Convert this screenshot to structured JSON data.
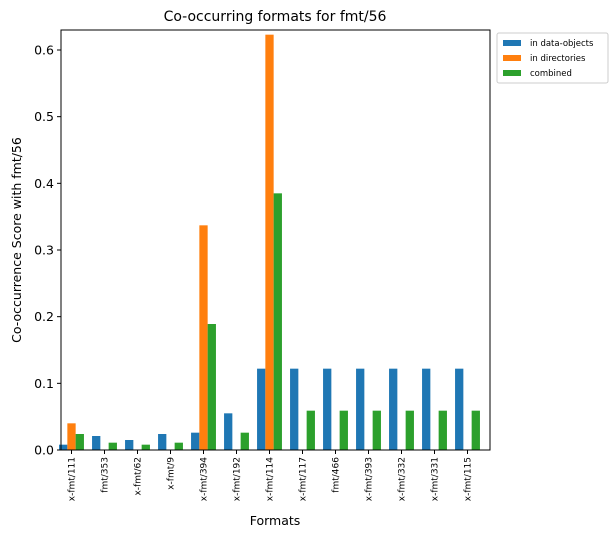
{
  "chart_data": {
    "type": "bar",
    "title": "Co-occurring formats for fmt/56",
    "xlabel": "Formats",
    "ylabel": "Co-occurrence Score with fmt/56",
    "ylim": [
      0,
      0.63
    ],
    "yticks": [
      "0.0",
      "0.1",
      "0.2",
      "0.3",
      "0.4",
      "0.5",
      "0.6"
    ],
    "grid": false,
    "legend_position": "outside-top-right",
    "categories": [
      "x-fmt/111",
      "fmt/353",
      "x-fmt/62",
      "x-fmt/9",
      "x-fmt/394",
      "x-fmt/192",
      "x-fmt/114",
      "x-fmt/117",
      "fmt/466",
      "x-fmt/393",
      "x-fmt/332",
      "x-fmt/331",
      "x-fmt/115"
    ],
    "series": [
      {
        "name": "in data-objects",
        "color": "#1f77b4",
        "values": [
          0.008,
          0.021,
          0.015,
          0.024,
          0.026,
          0.055,
          0.122,
          0.122,
          0.122,
          0.122,
          0.122,
          0.122,
          0.122
        ]
      },
      {
        "name": "in directories",
        "color": "#ff7f0e",
        "values": [
          0.04,
          0,
          0,
          0,
          0.337,
          0,
          0.623,
          0,
          0,
          0,
          0,
          0,
          0
        ]
      },
      {
        "name": "combined",
        "color": "#2ca02c",
        "values": [
          0.024,
          0.011,
          0.008,
          0.011,
          0.189,
          0.026,
          0.385,
          0.059,
          0.059,
          0.059,
          0.059,
          0.059,
          0.059
        ]
      }
    ]
  }
}
